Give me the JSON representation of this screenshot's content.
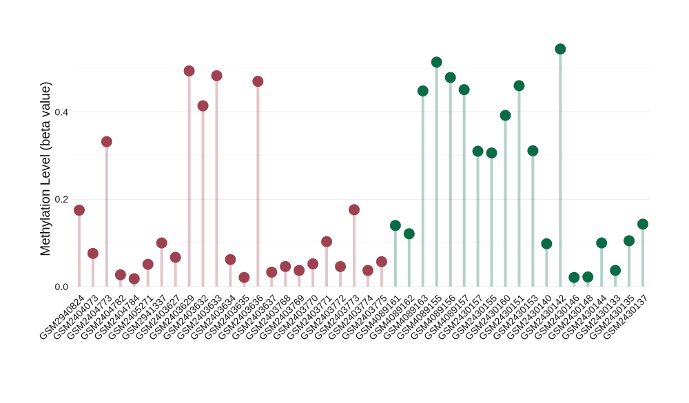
{
  "chart_data": {
    "type": "lollipop",
    "y_label": "Methylation Level (beta value)",
    "categories": [
      "GSM2940824",
      "GSM2404073",
      "GSM2404773",
      "GSM2404782",
      "GSM2404784",
      "GSM2405271",
      "GSM2941337",
      "GSM2403627",
      "GSM2403629",
      "GSM2403632",
      "GSM2403633",
      "GSM2403634",
      "GSM2403635",
      "GSM2403636",
      "GSM2403637",
      "GSM2403768",
      "GSM2403769",
      "GSM2403770",
      "GSM2403771",
      "GSM2403772",
      "GSM2403773",
      "GSM2403774",
      "GSM2403775",
      "GSM4089161",
      "GSM4089162",
      "GSM4089163",
      "GSM4089155",
      "GSM4089156",
      "GSM4089157",
      "GSM2430157",
      "GSM2430155",
      "GSM2430160",
      "GSM2430151",
      "GSM2430153",
      "GSM2430140",
      "GSM2430142",
      "GSM2430146",
      "GSM2430148",
      "GSM2430144",
      "GSM2430133",
      "GSM2430135",
      "GSM2430137"
    ],
    "values": [
      0.175,
      0.076,
      0.332,
      0.027,
      0.018,
      0.051,
      0.1,
      0.067,
      0.494,
      0.414,
      0.483,
      0.062,
      0.021,
      0.47,
      0.033,
      0.046,
      0.037,
      0.052,
      0.103,
      0.046,
      0.176,
      0.037,
      0.057,
      0.14,
      0.121,
      0.448,
      0.514,
      0.479,
      0.451,
      0.31,
      0.306,
      0.392,
      0.46,
      0.311,
      0.098,
      0.544,
      0.021,
      0.022,
      0.1,
      0.037,
      0.105,
      0.143
    ],
    "colors": [
      "#9e4150",
      "#9e4150",
      "#9e4150",
      "#9e4150",
      "#9e4150",
      "#9e4150",
      "#9e4150",
      "#9e4150",
      "#9e4150",
      "#9e4150",
      "#9e4150",
      "#9e4150",
      "#9e4150",
      "#9e4150",
      "#9e4150",
      "#9e4150",
      "#9e4150",
      "#9e4150",
      "#9e4150",
      "#9e4150",
      "#9e4150",
      "#9e4150",
      "#9e4150",
      "#0b6b45",
      "#0b6b45",
      "#0b6b45",
      "#0b6b45",
      "#0b6b45",
      "#0b6b45",
      "#0b6b45",
      "#0b6b45",
      "#0b6b45",
      "#0b6b45",
      "#0b6b45",
      "#0b6b45",
      "#0b6b45",
      "#0b6b45",
      "#0b6b45",
      "#0b6b45",
      "#0b6b45",
      "#0b6b45",
      "#0b6b45"
    ],
    "ylim": [
      0,
      0.56
    ],
    "yticks": [
      {
        "value": 0,
        "label": "0.0"
      },
      0.2,
      0.4
    ],
    "minor_grid": [
      0.1,
      0.3,
      0.5
    ],
    "grid": true
  }
}
